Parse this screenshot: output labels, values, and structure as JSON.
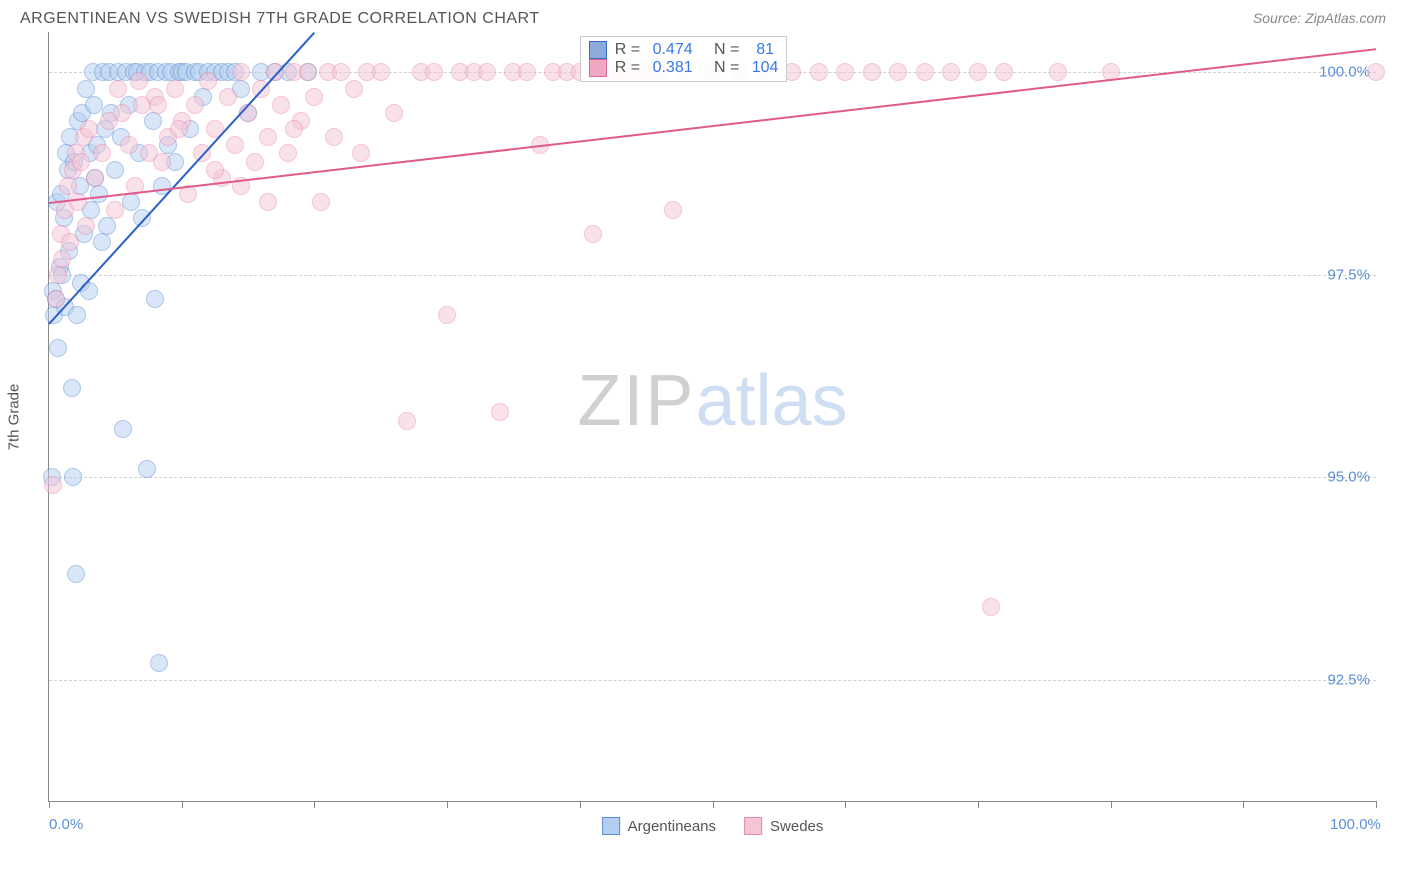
{
  "header": {
    "title": "ARGENTINEAN VS SWEDISH 7TH GRADE CORRELATION CHART",
    "source_prefix": "Source: ",
    "source": "ZipAtlas.com"
  },
  "chart": {
    "type": "scatter",
    "ylabel": "7th Grade",
    "xlim": [
      0,
      100
    ],
    "ylim": [
      91,
      100.5
    ],
    "xtick_positions": [
      0,
      10,
      20,
      30,
      40,
      50,
      60,
      70,
      80,
      90,
      100
    ],
    "xtick_labels": {
      "0": "0.0%",
      "100": "100.0%"
    },
    "ytick_positions": [
      92.5,
      95.0,
      97.5,
      100.0
    ],
    "ytick_labels": [
      "92.5%",
      "95.0%",
      "97.5%",
      "100.0%"
    ],
    "grid_color": "#d0d0d0",
    "axis_color": "#888888",
    "background_color": "#ffffff",
    "marker_radius": 9,
    "marker_opacity": 0.5,
    "watermark": {
      "part1": "ZIP",
      "part2": "atlas"
    },
    "series": [
      {
        "name": "Argentineans",
        "color_fill": "#b3cef0",
        "color_stroke": "#5b8fd6",
        "trend": {
          "x1": 0,
          "y1": 96.9,
          "x2": 20,
          "y2": 100.5,
          "color": "#2a5fc9",
          "width": 2
        },
        "stats": {
          "R": "0.474",
          "N": "81"
        },
        "points": [
          [
            0.2,
            95.0
          ],
          [
            0.3,
            97.3
          ],
          [
            0.4,
            97.0
          ],
          [
            0.5,
            97.2
          ],
          [
            0.6,
            98.4
          ],
          [
            0.7,
            96.6
          ],
          [
            0.8,
            97.6
          ],
          [
            0.9,
            98.5
          ],
          [
            1.0,
            97.5
          ],
          [
            1.1,
            98.2
          ],
          [
            1.2,
            97.1
          ],
          [
            1.3,
            99.0
          ],
          [
            1.4,
            98.8
          ],
          [
            1.5,
            97.8
          ],
          [
            1.6,
            99.2
          ],
          [
            1.7,
            96.1
          ],
          [
            1.8,
            95.0
          ],
          [
            1.9,
            98.9
          ],
          [
            2.0,
            93.8
          ],
          [
            2.1,
            97.0
          ],
          [
            2.2,
            99.4
          ],
          [
            2.3,
            98.6
          ],
          [
            2.4,
            97.4
          ],
          [
            2.5,
            99.5
          ],
          [
            2.6,
            98.0
          ],
          [
            2.8,
            99.8
          ],
          [
            3.0,
            97.3
          ],
          [
            3.1,
            99.0
          ],
          [
            3.2,
            98.3
          ],
          [
            3.3,
            100.0
          ],
          [
            3.4,
            99.6
          ],
          [
            3.5,
            98.7
          ],
          [
            3.6,
            99.1
          ],
          [
            3.8,
            98.5
          ],
          [
            4.0,
            97.9
          ],
          [
            4.1,
            100.0
          ],
          [
            4.2,
            99.3
          ],
          [
            4.4,
            98.1
          ],
          [
            4.5,
            100.0
          ],
          [
            4.7,
            99.5
          ],
          [
            5.0,
            98.8
          ],
          [
            5.2,
            100.0
          ],
          [
            5.4,
            99.2
          ],
          [
            5.6,
            95.6
          ],
          [
            5.8,
            100.0
          ],
          [
            6.0,
            99.6
          ],
          [
            6.2,
            98.4
          ],
          [
            6.4,
            100.0
          ],
          [
            6.6,
            100.0
          ],
          [
            6.8,
            99.0
          ],
          [
            7.0,
            98.2
          ],
          [
            7.2,
            100.0
          ],
          [
            7.4,
            95.1
          ],
          [
            7.6,
            100.0
          ],
          [
            7.8,
            99.4
          ],
          [
            8.0,
            97.2
          ],
          [
            8.2,
            100.0
          ],
          [
            8.5,
            98.6
          ],
          [
            8.8,
            100.0
          ],
          [
            9.0,
            99.1
          ],
          [
            9.2,
            100.0
          ],
          [
            9.5,
            98.9
          ],
          [
            9.8,
            100.0
          ],
          [
            10.0,
            100.0
          ],
          [
            10.3,
            100.0
          ],
          [
            10.6,
            99.3
          ],
          [
            11.0,
            100.0
          ],
          [
            11.3,
            100.0
          ],
          [
            11.6,
            99.7
          ],
          [
            12.0,
            100.0
          ],
          [
            12.5,
            100.0
          ],
          [
            13.0,
            100.0
          ],
          [
            13.5,
            100.0
          ],
          [
            14.0,
            100.0
          ],
          [
            14.5,
            99.8
          ],
          [
            15.0,
            99.5
          ],
          [
            16.0,
            100.0
          ],
          [
            17.0,
            100.0
          ],
          [
            18.0,
            100.0
          ],
          [
            8.3,
            92.7
          ],
          [
            19.5,
            100.0
          ]
        ]
      },
      {
        "name": "Swedes",
        "color_fill": "#f5c5d6",
        "color_stroke": "#e88aad",
        "trend": {
          "x1": 0,
          "y1": 98.4,
          "x2": 100,
          "y2": 100.3,
          "color": "#e05a8c",
          "width": 2
        },
        "stats": {
          "R": "0.381",
          "N": "104"
        },
        "points": [
          [
            0.3,
            94.9
          ],
          [
            0.5,
            97.2
          ],
          [
            0.7,
            97.5
          ],
          [
            0.9,
            98.0
          ],
          [
            1.0,
            97.7
          ],
          [
            1.2,
            98.3
          ],
          [
            1.4,
            98.6
          ],
          [
            1.6,
            97.9
          ],
          [
            1.8,
            98.8
          ],
          [
            2.0,
            99.0
          ],
          [
            2.2,
            98.4
          ],
          [
            2.4,
            98.9
          ],
          [
            2.6,
            99.2
          ],
          [
            2.8,
            98.1
          ],
          [
            3.0,
            99.3
          ],
          [
            3.5,
            98.7
          ],
          [
            4.0,
            99.0
          ],
          [
            4.5,
            99.4
          ],
          [
            5.0,
            98.3
          ],
          [
            5.5,
            99.5
          ],
          [
            6.0,
            99.1
          ],
          [
            6.5,
            98.6
          ],
          [
            7.0,
            99.6
          ],
          [
            7.5,
            99.0
          ],
          [
            8.0,
            99.7
          ],
          [
            8.5,
            98.9
          ],
          [
            9.0,
            99.2
          ],
          [
            9.5,
            99.8
          ],
          [
            10.0,
            99.4
          ],
          [
            10.5,
            98.5
          ],
          [
            11.0,
            99.6
          ],
          [
            11.5,
            99.0
          ],
          [
            12.0,
            99.9
          ],
          [
            12.5,
            99.3
          ],
          [
            13.0,
            98.7
          ],
          [
            13.5,
            99.7
          ],
          [
            14.0,
            99.1
          ],
          [
            14.5,
            100.0
          ],
          [
            15.0,
            99.5
          ],
          [
            15.5,
            98.9
          ],
          [
            16.0,
            99.8
          ],
          [
            16.5,
            99.2
          ],
          [
            17.0,
            100.0
          ],
          [
            17.5,
            99.6
          ],
          [
            18.0,
            99.0
          ],
          [
            18.5,
            100.0
          ],
          [
            19.0,
            99.4
          ],
          [
            19.5,
            100.0
          ],
          [
            20.0,
            99.7
          ],
          [
            20.5,
            98.4
          ],
          [
            21.0,
            100.0
          ],
          [
            22.0,
            100.0
          ],
          [
            23.0,
            99.8
          ],
          [
            24.0,
            100.0
          ],
          [
            25.0,
            100.0
          ],
          [
            26.0,
            99.5
          ],
          [
            27.0,
            95.7
          ],
          [
            28.0,
            100.0
          ],
          [
            29.0,
            100.0
          ],
          [
            30.0,
            97.0
          ],
          [
            31.0,
            100.0
          ],
          [
            32.0,
            100.0
          ],
          [
            33.0,
            100.0
          ],
          [
            34.0,
            95.8
          ],
          [
            35.0,
            100.0
          ],
          [
            36.0,
            100.0
          ],
          [
            37.0,
            99.1
          ],
          [
            38.0,
            100.0
          ],
          [
            39.0,
            100.0
          ],
          [
            40.0,
            100.0
          ],
          [
            41.0,
            98.0
          ],
          [
            42.0,
            100.0
          ],
          [
            43.0,
            100.0
          ],
          [
            44.0,
            100.0
          ],
          [
            45.0,
            100.0
          ],
          [
            46.0,
            100.0
          ],
          [
            47.0,
            98.3
          ],
          [
            48.0,
            100.0
          ],
          [
            50.0,
            100.0
          ],
          [
            52.0,
            100.0
          ],
          [
            54.0,
            100.0
          ],
          [
            56.0,
            100.0
          ],
          [
            58.0,
            100.0
          ],
          [
            60.0,
            100.0
          ],
          [
            62.0,
            100.0
          ],
          [
            64.0,
            100.0
          ],
          [
            66.0,
            100.0
          ],
          [
            68.0,
            100.0
          ],
          [
            70.0,
            100.0
          ],
          [
            71.0,
            93.4
          ],
          [
            72.0,
            100.0
          ],
          [
            76.0,
            100.0
          ],
          [
            80.0,
            100.0
          ],
          [
            100.0,
            100.0
          ],
          [
            12.5,
            98.8
          ],
          [
            14.5,
            98.6
          ],
          [
            16.5,
            98.4
          ],
          [
            18.5,
            99.3
          ],
          [
            21.5,
            99.2
          ],
          [
            23.5,
            99.0
          ],
          [
            5.2,
            99.8
          ],
          [
            6.8,
            99.9
          ],
          [
            8.2,
            99.6
          ],
          [
            9.8,
            99.3
          ]
        ]
      }
    ],
    "bottom_legend": [
      {
        "label": "Argentineans",
        "fill": "#b3cef0",
        "stroke": "#5b8fd6"
      },
      {
        "label": "Swedes",
        "fill": "#f5c5d6",
        "stroke": "#e88aad"
      }
    ],
    "stats_box": {
      "rows": [
        {
          "fill": "#8aabdc",
          "stroke": "#3b6bbf",
          "r_label": "R =",
          "r_val": " 0.474",
          "n_label": "   N =",
          "n_val": "  81"
        },
        {
          "fill": "#f0a8c2",
          "stroke": "#d86b97",
          "r_label": "R =",
          "r_val": " 0.381",
          "n_label": "   N =",
          "n_val": " 104"
        }
      ]
    }
  }
}
